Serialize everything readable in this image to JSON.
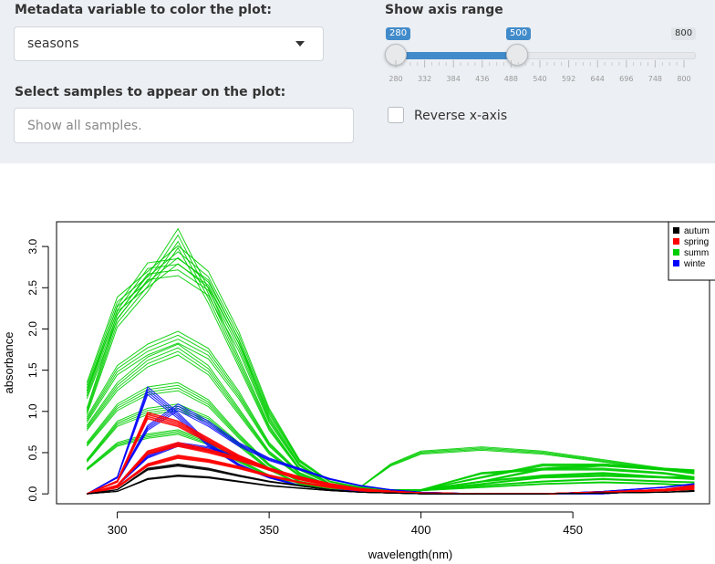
{
  "controls": {
    "color_var": {
      "label": "Metadata variable to color the plot:",
      "value": "seasons"
    },
    "samples": {
      "label": "Select samples to appear on the plot:",
      "placeholder": "Show all samples."
    },
    "axis_range": {
      "label": "Show axis range",
      "min": 280,
      "max": 800,
      "from": 280,
      "to": 500,
      "min_label": "280",
      "to_label": "500",
      "max_label": "800",
      "ticks": [
        "280",
        "332",
        "384",
        "436",
        "488",
        "540",
        "592",
        "644",
        "696",
        "748",
        "800"
      ]
    },
    "reverse": {
      "label": "Reverse x-axis",
      "checked": false
    }
  },
  "chart_data": {
    "type": "line",
    "title": "",
    "xlabel": "wavelength(nm)",
    "ylabel": "absorbance",
    "xlim": [
      280,
      495
    ],
    "ylim": [
      -0.12,
      3.3
    ],
    "x_ticks": [
      "300",
      "350",
      "400",
      "450"
    ],
    "y_ticks": [
      "0.0",
      "0.5",
      "1.0",
      "1.5",
      "2.0",
      "2.5",
      "3.0"
    ],
    "legend_position": "top-right",
    "series": [
      {
        "name": "autumn",
        "color": "#000000"
      },
      {
        "name": "spring",
        "color": "#ff0000"
      },
      {
        "name": "summer",
        "color": "#00cd00"
      },
      {
        "name": "winter",
        "color": "#0000ff"
      }
    ],
    "legend_labels": [
      "autum",
      "spring",
      "summ",
      "winte"
    ],
    "x": [
      290,
      300,
      310,
      320,
      330,
      340,
      350,
      360,
      370,
      380,
      390,
      400,
      420,
      440,
      460,
      480,
      490
    ],
    "profiles": [
      {
        "group": "summer",
        "values": [
          1.3,
          2.3,
          2.6,
          2.9,
          2.6,
          1.9,
          1.0,
          0.4,
          0.15,
          0.08,
          0.05,
          0.05,
          0.15,
          0.3,
          0.35,
          0.3,
          0.25
        ]
      },
      {
        "group": "summer",
        "values": [
          1.2,
          2.2,
          2.7,
          2.75,
          2.5,
          1.8,
          0.9,
          0.35,
          0.12,
          0.08,
          0.35,
          0.5,
          0.55,
          0.5,
          0.4,
          0.3,
          0.28
        ]
      },
      {
        "group": "summer",
        "values": [
          1.0,
          2.1,
          2.55,
          3.1,
          2.4,
          1.6,
          0.8,
          0.3,
          0.12,
          0.07,
          0.05,
          0.05,
          0.2,
          0.35,
          0.35,
          0.3,
          0.28
        ]
      },
      {
        "group": "summer",
        "values": [
          0.9,
          1.5,
          1.75,
          1.9,
          1.7,
          1.2,
          0.6,
          0.25,
          0.1,
          0.05,
          0.04,
          0.05,
          0.25,
          0.3,
          0.3,
          0.25,
          0.2
        ]
      },
      {
        "group": "summer",
        "values": [
          0.8,
          1.3,
          1.6,
          1.75,
          1.5,
          1.0,
          0.5,
          0.22,
          0.09,
          0.05,
          0.04,
          0.05,
          0.15,
          0.22,
          0.25,
          0.2,
          0.2
        ]
      },
      {
        "group": "summer",
        "values": [
          0.6,
          1.05,
          1.25,
          1.3,
          1.1,
          0.7,
          0.35,
          0.15,
          0.08,
          0.05,
          0.04,
          0.05,
          0.12,
          0.2,
          0.22,
          0.2,
          0.18
        ]
      },
      {
        "group": "summer",
        "values": [
          0.4,
          0.85,
          1.0,
          1.05,
          0.9,
          0.6,
          0.3,
          0.12,
          0.06,
          0.04,
          0.03,
          0.04,
          0.1,
          0.15,
          0.18,
          0.15,
          0.14
        ]
      },
      {
        "group": "summer",
        "values": [
          0.3,
          0.6,
          0.7,
          0.75,
          0.62,
          0.4,
          0.22,
          0.1,
          0.05,
          0.03,
          0.03,
          0.04,
          0.08,
          0.12,
          0.14,
          0.12,
          0.1
        ]
      },
      {
        "group": "winter",
        "values": [
          0.0,
          0.2,
          1.25,
          0.95,
          0.6,
          0.35,
          0.2,
          0.1,
          0.05,
          0.03,
          0.02,
          0.0,
          0.0,
          0.0,
          0.0,
          0.05,
          0.08
        ]
      },
      {
        "group": "winter",
        "values": [
          0.0,
          0.15,
          0.8,
          1.05,
          0.85,
          0.6,
          0.42,
          0.3,
          0.18,
          0.1,
          0.05,
          0.02,
          0.0,
          0.0,
          0.03,
          0.08,
          0.12
        ]
      },
      {
        "group": "winter",
        "values": [
          0.0,
          0.1,
          0.45,
          0.6,
          0.55,
          0.45,
          0.3,
          0.2,
          0.12,
          0.06,
          0.03,
          0.01,
          0.0,
          0.0,
          0.02,
          0.05,
          0.1
        ]
      },
      {
        "group": "spring",
        "values": [
          0.0,
          0.15,
          0.95,
          0.85,
          0.65,
          0.45,
          0.3,
          0.18,
          0.1,
          0.05,
          0.03,
          0.01,
          0.0,
          0.0,
          0.02,
          0.05,
          0.08
        ]
      },
      {
        "group": "spring",
        "values": [
          0.0,
          0.1,
          0.5,
          0.6,
          0.52,
          0.42,
          0.3,
          0.2,
          0.12,
          0.06,
          0.03,
          0.01,
          0.0,
          0.0,
          0.02,
          0.05,
          0.1
        ]
      },
      {
        "group": "spring",
        "values": [
          0.0,
          0.08,
          0.35,
          0.45,
          0.4,
          0.32,
          0.22,
          0.14,
          0.08,
          0.04,
          0.02,
          0.01,
          0.0,
          0.0,
          0.02,
          0.04,
          0.06
        ]
      },
      {
        "group": "autumn",
        "values": [
          0.0,
          0.05,
          0.3,
          0.35,
          0.3,
          0.22,
          0.15,
          0.1,
          0.05,
          0.02,
          0.01,
          0.0,
          0.0,
          0.0,
          0.01,
          0.02,
          0.04
        ]
      },
      {
        "group": "autumn",
        "values": [
          0.0,
          0.03,
          0.18,
          0.22,
          0.2,
          0.15,
          0.1,
          0.07,
          0.04,
          0.02,
          0.01,
          0.0,
          0.0,
          0.0,
          0.01,
          0.02,
          0.03
        ]
      }
    ]
  }
}
